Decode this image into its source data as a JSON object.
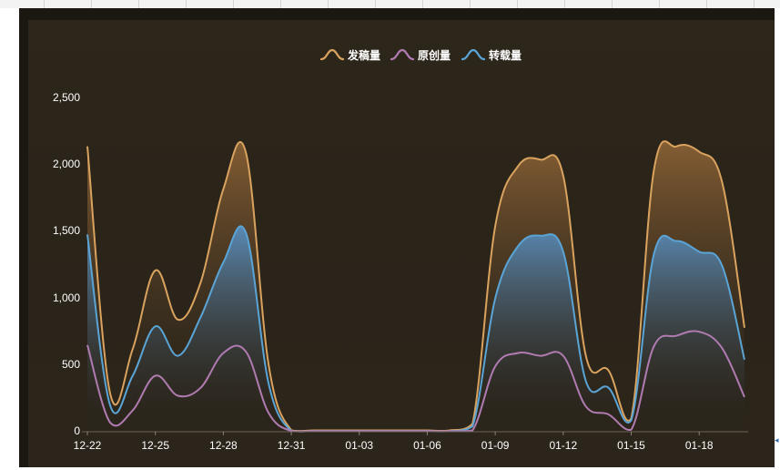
{
  "chart_data": {
    "type": "area",
    "title": "",
    "xlabel": "",
    "ylabel": "",
    "ylim": [
      0,
      2500
    ],
    "yticks": [
      "2,500",
      "2,000",
      "1,500",
      "1,000",
      "500",
      "0"
    ],
    "ytick_values": [
      2500,
      2000,
      1500,
      1000,
      500,
      0
    ],
    "xtick_labels": [
      "12-22",
      "12-25",
      "12-28",
      "12-31",
      "01-03",
      "01-06",
      "01-09",
      "01-12",
      "01-15",
      "01-18"
    ],
    "x": [
      "12-22",
      "12-23",
      "12-24",
      "12-25",
      "12-26",
      "12-27",
      "12-28",
      "12-29",
      "12-30",
      "12-31",
      "01-01",
      "01-02",
      "01-03",
      "01-04",
      "01-05",
      "01-06",
      "01-07",
      "01-08",
      "01-09",
      "01-10",
      "01-11",
      "01-12",
      "01-13",
      "01-14",
      "01-15",
      "01-16",
      "01-17",
      "01-18",
      "01-19",
      "01-20"
    ],
    "legend_position": "top-center",
    "grid": false,
    "series": [
      {
        "name": "发稿量",
        "color": "#d9a35f",
        "values": [
          2140,
          290,
          620,
          1210,
          840,
          1120,
          1820,
          2090,
          500,
          10,
          10,
          10,
          10,
          10,
          10,
          10,
          10,
          60,
          1540,
          1990,
          2040,
          1920,
          570,
          460,
          100,
          1960,
          2140,
          2100,
          1880,
          780
        ]
      },
      {
        "name": "原创量",
        "color": "#b07bb1",
        "values": [
          650,
          70,
          160,
          420,
          270,
          330,
          590,
          600,
          140,
          5,
          5,
          5,
          5,
          5,
          5,
          5,
          5,
          10,
          490,
          590,
          570,
          570,
          190,
          130,
          15,
          640,
          720,
          750,
          630,
          260
        ]
      },
      {
        "name": "转载量",
        "color": "#5aa4d6",
        "values": [
          1480,
          200,
          420,
          790,
          570,
          860,
          1270,
          1490,
          360,
          5,
          5,
          5,
          5,
          5,
          5,
          5,
          5,
          40,
          1000,
          1390,
          1470,
          1350,
          380,
          330,
          85,
          1330,
          1430,
          1350,
          1250,
          540
        ]
      }
    ]
  }
}
